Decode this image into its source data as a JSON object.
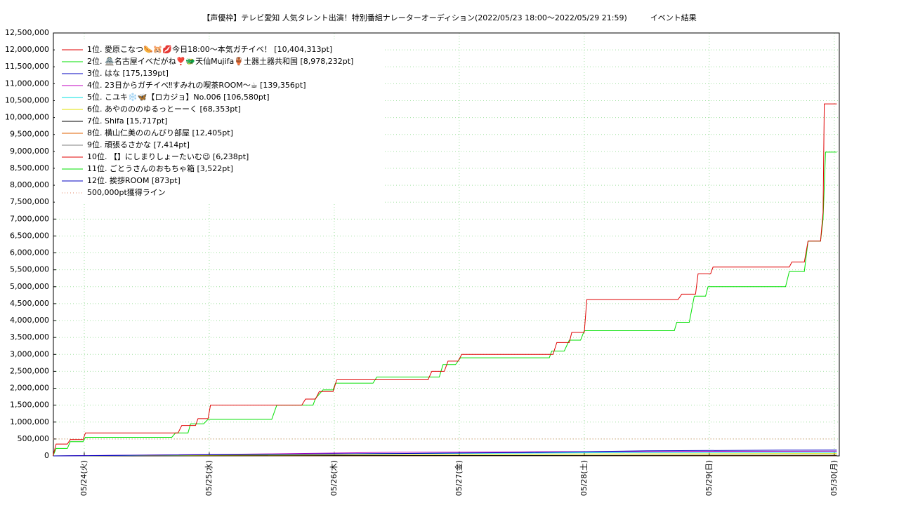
{
  "chart_data": {
    "type": "line",
    "title": "【声優枠】テレビ愛知 人気タレント出演！特別番組ナレーターオーディション(2022/05/23 18:00～2022/05/29 21:59)　　　イベント結果",
    "xlim": [
      23.753,
      30.04
    ],
    "xticks": [
      {
        "value": 24,
        "label": "05/24(火)"
      },
      {
        "value": 25,
        "label": "05/25(水)"
      },
      {
        "value": 26,
        "label": "05/26(木)"
      },
      {
        "value": 27,
        "label": "05/27(金)"
      },
      {
        "value": 28,
        "label": "05/28(土)"
      },
      {
        "value": 29,
        "label": "05/29(日)"
      },
      {
        "value": 30,
        "label": "05/30(月)"
      }
    ],
    "ylim": [
      0,
      12500000
    ],
    "yticks": [
      0,
      {
        "value": 500000,
        "label": "500,000"
      },
      {
        "value": 1000000,
        "label": "1,000,000"
      },
      {
        "value": 1500000,
        "label": "1,500,000"
      },
      {
        "value": 2000000,
        "label": "2,000,000"
      },
      {
        "value": 2500000,
        "label": "2,500,000"
      },
      {
        "value": 3000000,
        "label": "3,000,000"
      },
      {
        "value": 3500000,
        "label": "3,500,000"
      },
      {
        "value": 4000000,
        "label": "4,000,000"
      },
      {
        "value": 4500000,
        "label": "4,500,000"
      },
      {
        "value": 5000000,
        "label": "5,000,000"
      },
      {
        "value": 5500000,
        "label": "5,500,000"
      },
      {
        "value": 6000000,
        "label": "6,000,000"
      },
      {
        "value": 6500000,
        "label": "6,500,000"
      },
      {
        "value": 7000000,
        "label": "7,000,000"
      },
      {
        "value": 7500000,
        "label": "7,500,000"
      },
      {
        "value": 8000000,
        "label": "8,000,000"
      },
      {
        "value": 8500000,
        "label": "8,500,000"
      },
      {
        "value": 9000000,
        "label": "9,000,000"
      },
      {
        "value": 9500000,
        "label": "9,500,000"
      },
      {
        "value": 10000000,
        "label": "10,000,000"
      },
      {
        "value": 10500000,
        "label": "10,500,000"
      },
      {
        "value": 11000000,
        "label": "11,000,000"
      },
      {
        "value": 11500000,
        "label": "11,500,000"
      },
      {
        "value": 12000000,
        "label": "12,000,000"
      },
      {
        "value": 12500000,
        "label": "12,500,000"
      }
    ],
    "grid": true,
    "legend": "upper left",
    "series": [
      {
        "name": "1位. 愛原こなつ🌭🐹💋今日18:00～本気ガチイベ！ [10,404,313pt]",
        "color": "#e00000",
        "x": [
          23.75,
          23.775,
          23.865,
          23.888,
          23.99,
          24.01,
          24.75,
          24.78,
          24.89,
          24.91,
          24.99,
          25.01,
          25.74,
          25.77,
          25.85,
          25.88,
          25.99,
          26.02,
          26.75,
          26.78,
          26.88,
          26.91,
          26.99,
          27.02,
          27.75,
          27.78,
          27.88,
          27.9,
          28.0,
          28.02,
          28.75,
          28.78,
          28.89,
          28.91,
          29.01,
          29.03,
          29.64,
          29.66,
          29.76,
          29.79,
          29.89,
          29.91,
          29.92,
          30.02
        ],
        "values": [
          0,
          350000,
          350000,
          480000,
          480000,
          680000,
          680000,
          900000,
          900000,
          1100000,
          1100000,
          1500000,
          1500000,
          1680000,
          1680000,
          1900000,
          1900000,
          2250000,
          2250000,
          2500000,
          2500000,
          2800000,
          2800000,
          3000000,
          3000000,
          3350000,
          3350000,
          3650000,
          3650000,
          4620000,
          4620000,
          4780000,
          4780000,
          5380000,
          5380000,
          5580000,
          5580000,
          5730000,
          5730000,
          6350000,
          6350000,
          7200000,
          10404313,
          10404313
        ]
      },
      {
        "name": "2位. 🏯名古屋イベだがね❣️🐲天仙Mujifa🏺土器土器共和国 [8,978,232pt]",
        "color": "#00e000",
        "x": [
          23.75,
          23.775,
          23.865,
          23.888,
          23.99,
          24.01,
          24.7,
          24.73,
          24.83,
          24.85,
          24.955,
          24.99,
          25.5,
          25.54,
          25.83,
          25.85,
          25.91,
          25.99,
          26.01,
          26.31,
          26.34,
          26.84,
          26.87,
          26.97,
          27.01,
          27.72,
          27.74,
          27.84,
          27.88,
          27.97,
          28.0,
          28.72,
          28.74,
          28.84,
          28.88,
          28.97,
          28.99,
          29.61,
          29.64,
          29.76,
          29.79,
          29.89,
          29.91,
          29.93,
          30.02
        ],
        "values": [
          0,
          220000,
          220000,
          420000,
          420000,
          550000,
          550000,
          680000,
          680000,
          950000,
          950000,
          1080000,
          1080000,
          1500000,
          1500000,
          1700000,
          1950000,
          1950000,
          2150000,
          2150000,
          2330000,
          2330000,
          2700000,
          2700000,
          2900000,
          2900000,
          3100000,
          3100000,
          3420000,
          3420000,
          3700000,
          3700000,
          3950000,
          3950000,
          4720000,
          4720000,
          5000000,
          5000000,
          5450000,
          5450000,
          6350000,
          6350000,
          7000000,
          8978232,
          8978232
        ]
      },
      {
        "name": "3位. はな [175,139pt]",
        "color": "#0000c0",
        "x": [
          23.75,
          25.5,
          26.5,
          27.5,
          28.5,
          29.6,
          30.02
        ],
        "values": [
          0,
          50000,
          70000,
          100000,
          150000,
          170000,
          175139
        ]
      },
      {
        "name": "4位. 23日からガチイベ‼すみれの喫茶ROOM〜☕ [139,356pt]",
        "color": "#c000c0",
        "x": [
          23.75,
          25.5,
          26.5,
          27.5,
          28.5,
          30.02
        ],
        "values": [
          0,
          60000,
          110000,
          120000,
          130000,
          139356
        ]
      },
      {
        "name": "5位. こユキ❄️🦋【ロカジョ】No.006 [106,580pt]",
        "color": "#00e0e0",
        "x": [
          23.75,
          26.5,
          28.5,
          30.02
        ],
        "values": [
          0,
          70000,
          100000,
          106580
        ]
      },
      {
        "name": "6位. あやのののゆるっとーーく [68,353pt]",
        "color": "#e0e000",
        "x": [
          23.75,
          26.5,
          28.5,
          30.02
        ],
        "values": [
          0,
          40000,
          60000,
          68353
        ]
      },
      {
        "name": "7位. Shifa [15,717pt]",
        "color": "#000000",
        "x": [
          23.75,
          27.0,
          30.02
        ],
        "values": [
          0,
          10000,
          15717
        ]
      },
      {
        "name": "8位. 横山仁美ののんびり部屋 [12,405pt]",
        "color": "#e06000",
        "x": [
          23.75,
          27.0,
          30.02
        ],
        "values": [
          0,
          8000,
          12405
        ]
      },
      {
        "name": "9位. 頑張るさかな [7,414pt]",
        "color": "#808080",
        "x": [
          23.75,
          27.0,
          30.02
        ],
        "values": [
          0,
          5000,
          7414
        ]
      },
      {
        "name": "10位. 【】にしまりしょーたいむ😉 [6,238pt]",
        "color": "#e00000",
        "x": [
          23.75,
          27.0,
          30.02
        ],
        "values": [
          0,
          4000,
          6238
        ]
      },
      {
        "name": "11位. ごとうさんのおもちゃ箱 [3,522pt]",
        "color": "#00e000",
        "x": [
          23.75,
          27.0,
          30.02
        ],
        "values": [
          0,
          2000,
          3522
        ]
      },
      {
        "name": "12位. 挨拶ROOM [873pt]",
        "color": "#0000c0",
        "x": [
          23.75,
          27.0,
          30.02
        ],
        "values": [
          0,
          500,
          873
        ]
      },
      {
        "name": "500,000pt獲得ライン",
        "color": "#e08060",
        "dash": "dotted",
        "x": [
          23.75,
          30.02
        ],
        "values": [
          500000,
          500000
        ]
      }
    ]
  }
}
